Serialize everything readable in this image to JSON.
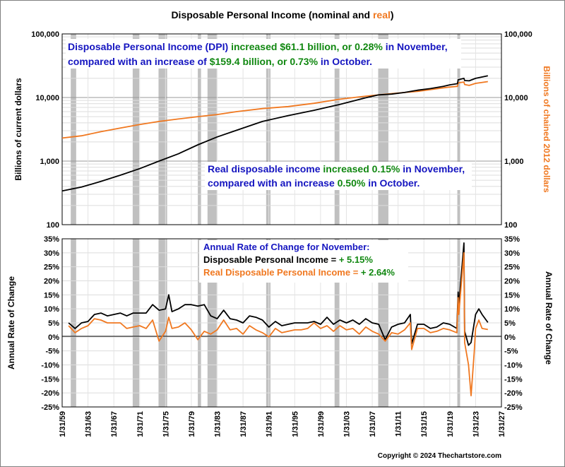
{
  "title": {
    "main": "Disposable Personal Income  (nominal and ",
    "real_word": "real",
    "close": ")"
  },
  "colors": {
    "nominal": "#000000",
    "real": "#F07820",
    "recession": "#C0C0C0",
    "blue": "#1515C0",
    "green": "#118811",
    "orange": "#F07820"
  },
  "top_panel": {
    "y_left_label": "Billions of current dollars",
    "y_right_label": "Billions of chained 2012 dollars",
    "y_ticks": [
      "100,000",
      "10,000",
      "1,000",
      "100"
    ],
    "annotation1": [
      [
        {
          "t": "Disposable Personal Income (DPI) ",
          "c": "blue"
        },
        {
          "t": "increased $61.1 billion, or 0.28%",
          "c": "green"
        },
        {
          "t": " in November,",
          "c": "blue"
        }
      ],
      [
        {
          "t": "compared with an increase of ",
          "c": "blue"
        },
        {
          "t": "$159.4 billion, or 0.73%",
          "c": "green"
        },
        {
          "t": " in October.",
          "c": "blue"
        }
      ]
    ],
    "annotation2": [
      [
        {
          "t": "Real disposable income ",
          "c": "blue"
        },
        {
          "t": "increased 0.15%",
          "c": "green"
        },
        {
          "t": " in November,",
          "c": "blue"
        }
      ],
      [
        {
          "t": "compared with an increase ",
          "c": "blue"
        },
        {
          "t": "0.50%",
          "c": "green"
        },
        {
          "t": " in October.",
          "c": "blue"
        }
      ]
    ]
  },
  "bottom_panel": {
    "y_label": "Annual Rate of Change",
    "y_ticks": [
      "35%",
      "30%",
      "25%",
      "20%",
      "15%",
      "10%",
      "5%",
      "0%",
      "-5%",
      "-10%",
      "-15%",
      "-20%",
      "-25%"
    ],
    "legend_title": "Annual Rate of Change for November:",
    "legend_line1": {
      "label": "Disposable Personal Income = ",
      "value": "+ 5.15%"
    },
    "legend_line2": {
      "label": "Real Disposable Personal Income = ",
      "value": "+ 2.64%"
    }
  },
  "x_ticks": [
    "1/31/59",
    "1/31/63",
    "1/31/67",
    "1/31/71",
    "1/31/75",
    "1/31/79",
    "1/31/83",
    "1/31/87",
    "1/31/91",
    "1/31/95",
    "1/31/99",
    "1/31/03",
    "1/31/07",
    "1/31/11",
    "1/31/15",
    "1/31/19",
    "1/31/23",
    "1/31/27"
  ],
  "copyright": "Copyright © 2024 Thechartstore.com",
  "chart_data": {
    "type": "line",
    "title": "Disposable Personal Income (nominal and real)",
    "x_range": [
      1959,
      2027
    ],
    "recessions": [
      [
        1960.33,
        1961.17
      ],
      [
        1969.92,
        1970.92
      ],
      [
        1973.92,
        1975.25
      ],
      [
        1980.0,
        1980.5
      ],
      [
        1981.5,
        1982.92
      ],
      [
        1990.58,
        1991.25
      ],
      [
        2001.17,
        2001.92
      ],
      [
        2007.92,
        2009.5
      ],
      [
        2020.17,
        2020.42
      ]
    ],
    "levels": {
      "yscale": "log",
      "ylim": [
        100,
        100000
      ],
      "series": [
        {
          "name": "Disposable Personal Income",
          "unit": "Billions of current dollars",
          "points": [
            [
              1959,
              340
            ],
            [
              1962,
              390
            ],
            [
              1965,
              480
            ],
            [
              1968,
              600
            ],
            [
              1971,
              760
            ],
            [
              1974,
              1000
            ],
            [
              1977,
              1300
            ],
            [
              1980,
              1800
            ],
            [
              1983,
              2400
            ],
            [
              1986,
              3050
            ],
            [
              1990,
              4200
            ],
            [
              1994,
              5200
            ],
            [
              1998,
              6300
            ],
            [
              2002,
              7800
            ],
            [
              2006,
              9900
            ],
            [
              2008,
              11000
            ],
            [
              2010,
              11300
            ],
            [
              2012,
              12000
            ],
            [
              2014,
              13000
            ],
            [
              2016,
              13800
            ],
            [
              2018,
              15000
            ],
            [
              2019,
              15800
            ],
            [
              2020.2,
              16500
            ],
            [
              2020.3,
              19000
            ],
            [
              2021.2,
              20000
            ],
            [
              2021.3,
              18500
            ],
            [
              2022,
              18300
            ],
            [
              2023,
              20000
            ],
            [
              2024.9,
              22000
            ]
          ]
        },
        {
          "name": "Real Disposable Personal Income",
          "unit": "Billions of chained 2012 dollars",
          "points": [
            [
              1959,
              2300
            ],
            [
              1962,
              2500
            ],
            [
              1965,
              2900
            ],
            [
              1968,
              3300
            ],
            [
              1971,
              3750
            ],
            [
              1974,
              4200
            ],
            [
              1977,
              4600
            ],
            [
              1980,
              5000
            ],
            [
              1983,
              5400
            ],
            [
              1986,
              6000
            ],
            [
              1990,
              6700
            ],
            [
              1994,
              7200
            ],
            [
              1998,
              8100
            ],
            [
              2002,
              9400
            ],
            [
              2006,
              10500
            ],
            [
              2008,
              11000
            ],
            [
              2010,
              11500
            ],
            [
              2012,
              12000
            ],
            [
              2014,
              12500
            ],
            [
              2016,
              13300
            ],
            [
              2018,
              14200
            ],
            [
              2019,
              14600
            ],
            [
              2020.2,
              15000
            ],
            [
              2020.3,
              17000
            ],
            [
              2021.2,
              17500
            ],
            [
              2021.3,
              16000
            ],
            [
              2022,
              15500
            ],
            [
              2023,
              16700
            ],
            [
              2024.9,
              17800
            ]
          ]
        }
      ]
    },
    "rate_of_change": {
      "ylim": [
        -25,
        35
      ],
      "unit": "%",
      "series": [
        {
          "name": "Disposable Personal Income",
          "points": [
            [
              1960,
              5
            ],
            [
              1961,
              3
            ],
            [
              1962,
              5
            ],
            [
              1963,
              5.5
            ],
            [
              1964,
              8
            ],
            [
              1965,
              8.5
            ],
            [
              1966,
              7.5
            ],
            [
              1967,
              8
            ],
            [
              1968,
              8.5
            ],
            [
              1969,
              7.5
            ],
            [
              1970,
              8.5
            ],
            [
              1971,
              8.5
            ],
            [
              1972,
              8.5
            ],
            [
              1973,
              11.5
            ],
            [
              1974,
              9.5
            ],
            [
              1975,
              10
            ],
            [
              1975.5,
              15
            ],
            [
              1976,
              9
            ],
            [
              1977,
              10
            ],
            [
              1978,
              11.5
            ],
            [
              1979,
              11.5
            ],
            [
              1980,
              11
            ],
            [
              1981,
              11.5
            ],
            [
              1982,
              7.5
            ],
            [
              1983,
              6.5
            ],
            [
              1984,
              9.5
            ],
            [
              1985,
              6.5
            ],
            [
              1986,
              6
            ],
            [
              1987,
              5
            ],
            [
              1988,
              7.5
            ],
            [
              1989,
              7
            ],
            [
              1990,
              6
            ],
            [
              1991,
              3.5
            ],
            [
              1992,
              5.5
            ],
            [
              1993,
              4
            ],
            [
              1994,
              4.5
            ],
            [
              1995,
              5
            ],
            [
              1996,
              5
            ],
            [
              1997,
              5
            ],
            [
              1998,
              5.5
            ],
            [
              1999,
              4.5
            ],
            [
              2000,
              7
            ],
            [
              2001,
              4.5
            ],
            [
              2002,
              6
            ],
            [
              2003,
              5
            ],
            [
              2004,
              6
            ],
            [
              2005,
              4.5
            ],
            [
              2006,
              6.5
            ],
            [
              2007,
              5
            ],
            [
              2008,
              4.5
            ],
            [
              2009,
              -1
            ],
            [
              2010,
              3.5
            ],
            [
              2011,
              4.5
            ],
            [
              2012,
              5
            ],
            [
              2012.9,
              8
            ],
            [
              2013.1,
              -2.5
            ],
            [
              2014,
              4.5
            ],
            [
              2015,
              4.5
            ],
            [
              2016,
              3
            ],
            [
              2017,
              3.5
            ],
            [
              2018,
              5
            ],
            [
              2019,
              4.5
            ],
            [
              2020.1,
              3
            ],
            [
              2020.3,
              16
            ],
            [
              2020.4,
              11
            ],
            [
              2021.2,
              33.5
            ],
            [
              2021.25,
              16
            ],
            [
              2021.3,
              2
            ],
            [
              2021.9,
              -3
            ],
            [
              2022.3,
              -2
            ],
            [
              2023,
              8
            ],
            [
              2023.5,
              10
            ],
            [
              2024,
              8
            ],
            [
              2024.9,
              5.15
            ]
          ]
        },
        {
          "name": "Real Disposable Personal Income",
          "points": [
            [
              1960,
              4
            ],
            [
              1961,
              1.5
            ],
            [
              1962,
              3
            ],
            [
              1963,
              4
            ],
            [
              1964,
              6.5
            ],
            [
              1965,
              6
            ],
            [
              1966,
              5
            ],
            [
              1967,
              5
            ],
            [
              1968,
              5
            ],
            [
              1969,
              3
            ],
            [
              1970,
              3.5
            ],
            [
              1971,
              4
            ],
            [
              1972,
              3
            ],
            [
              1973,
              6
            ],
            [
              1974,
              -1.5
            ],
            [
              1975,
              2
            ],
            [
              1975.5,
              7
            ],
            [
              1976,
              3
            ],
            [
              1977,
              3.5
            ],
            [
              1978,
              5
            ],
            [
              1979,
              2.5
            ],
            [
              1980,
              -1
            ],
            [
              1981,
              2
            ],
            [
              1982,
              1
            ],
            [
              1983,
              2.5
            ],
            [
              1984,
              6
            ],
            [
              1985,
              2.5
            ],
            [
              1986,
              3
            ],
            [
              1987,
              1
            ],
            [
              1988,
              4
            ],
            [
              1989,
              2.5
            ],
            [
              1990,
              1.5
            ],
            [
              1991,
              0
            ],
            [
              1992,
              3
            ],
            [
              1993,
              1.5
            ],
            [
              1994,
              2
            ],
            [
              1995,
              2.5
            ],
            [
              1996,
              2.5
            ],
            [
              1997,
              3
            ],
            [
              1998,
              5
            ],
            [
              1999,
              3
            ],
            [
              2000,
              4
            ],
            [
              2001,
              2
            ],
            [
              2002,
              4
            ],
            [
              2003,
              2.5
            ],
            [
              2004,
              3
            ],
            [
              2005,
              1
            ],
            [
              2006,
              3.5
            ],
            [
              2007,
              2
            ],
            [
              2008,
              1
            ],
            [
              2009,
              -1.5
            ],
            [
              2010,
              1.5
            ],
            [
              2011,
              1
            ],
            [
              2012,
              2.5
            ],
            [
              2012.9,
              5
            ],
            [
              2013.1,
              -4.5
            ],
            [
              2014,
              3
            ],
            [
              2015,
              3
            ],
            [
              2016,
              1.5
            ],
            [
              2017,
              2
            ],
            [
              2018,
              3
            ],
            [
              2019,
              2.5
            ],
            [
              2020.1,
              1.5
            ],
            [
              2020.3,
              14
            ],
            [
              2020.4,
              8
            ],
            [
              2021.2,
              30
            ],
            [
              2021.25,
              13
            ],
            [
              2021.3,
              -2
            ],
            [
              2021.9,
              -10
            ],
            [
              2022.3,
              -21
            ],
            [
              2022.8,
              -5
            ],
            [
              2023,
              3
            ],
            [
              2023.5,
              6
            ],
            [
              2024,
              3
            ],
            [
              2024.9,
              2.64
            ]
          ]
        }
      ]
    }
  }
}
